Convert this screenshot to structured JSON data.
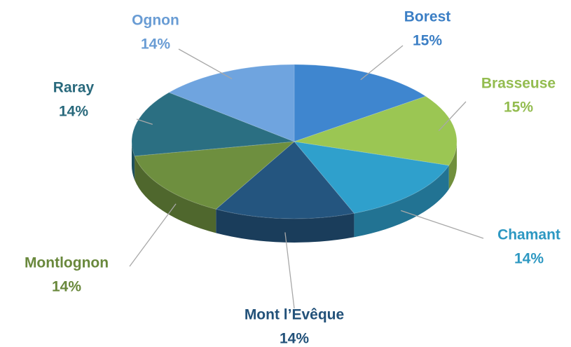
{
  "chart_data": {
    "type": "pie",
    "categories": [
      "Borest",
      "Brasseuse",
      "Chamant",
      "Mont l’Evêque",
      "Montlognon",
      "Raray",
      "Ognon"
    ],
    "values": [
      15,
      15,
      14,
      14,
      14,
      14,
      14
    ],
    "value_labels": [
      "15%",
      "15%",
      "14%",
      "14%",
      "14%",
      "14%",
      "14%"
    ],
    "colors": [
      "#3f86cf",
      "#9bc653",
      "#2fa0cc",
      "#24557f",
      "#6e8f3f",
      "#2b6f82",
      "#6fa4df"
    ]
  }
}
